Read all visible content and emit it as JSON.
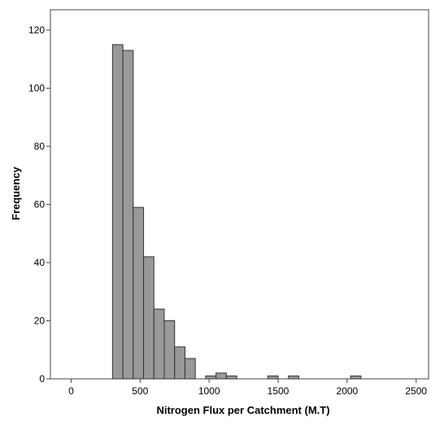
{
  "chart_data": {
    "type": "bar",
    "subtype": "histogram",
    "xlabel": "Nitrogen Flux per Catchment (M.T)",
    "ylabel": "Frequency",
    "xlim": [
      -150,
      2590
    ],
    "ylim": [
      0,
      127
    ],
    "x_ticks": [
      0,
      500,
      1000,
      1500,
      2000,
      2500
    ],
    "y_ticks": [
      0,
      20,
      40,
      60,
      80,
      100,
      120
    ],
    "bin_width": 75,
    "bins": [
      {
        "x0": 300,
        "x1": 375,
        "count": 115
      },
      {
        "x0": 375,
        "x1": 450,
        "count": 113
      },
      {
        "x0": 450,
        "x1": 525,
        "count": 59
      },
      {
        "x0": 525,
        "x1": 600,
        "count": 42
      },
      {
        "x0": 600,
        "x1": 675,
        "count": 24
      },
      {
        "x0": 675,
        "x1": 750,
        "count": 20
      },
      {
        "x0": 750,
        "x1": 825,
        "count": 11
      },
      {
        "x0": 825,
        "x1": 900,
        "count": 7
      },
      {
        "x0": 975,
        "x1": 1050,
        "count": 1
      },
      {
        "x0": 1050,
        "x1": 1125,
        "count": 2
      },
      {
        "x0": 1125,
        "x1": 1200,
        "count": 1
      },
      {
        "x0": 1425,
        "x1": 1500,
        "count": 1
      },
      {
        "x0": 1575,
        "x1": 1650,
        "count": 1
      },
      {
        "x0": 2025,
        "x1": 2100,
        "count": 1
      }
    ],
    "grid": false,
    "colors": {
      "bar_fill": "#999999",
      "bar_stroke": "#333333",
      "frame": "#444444"
    }
  }
}
